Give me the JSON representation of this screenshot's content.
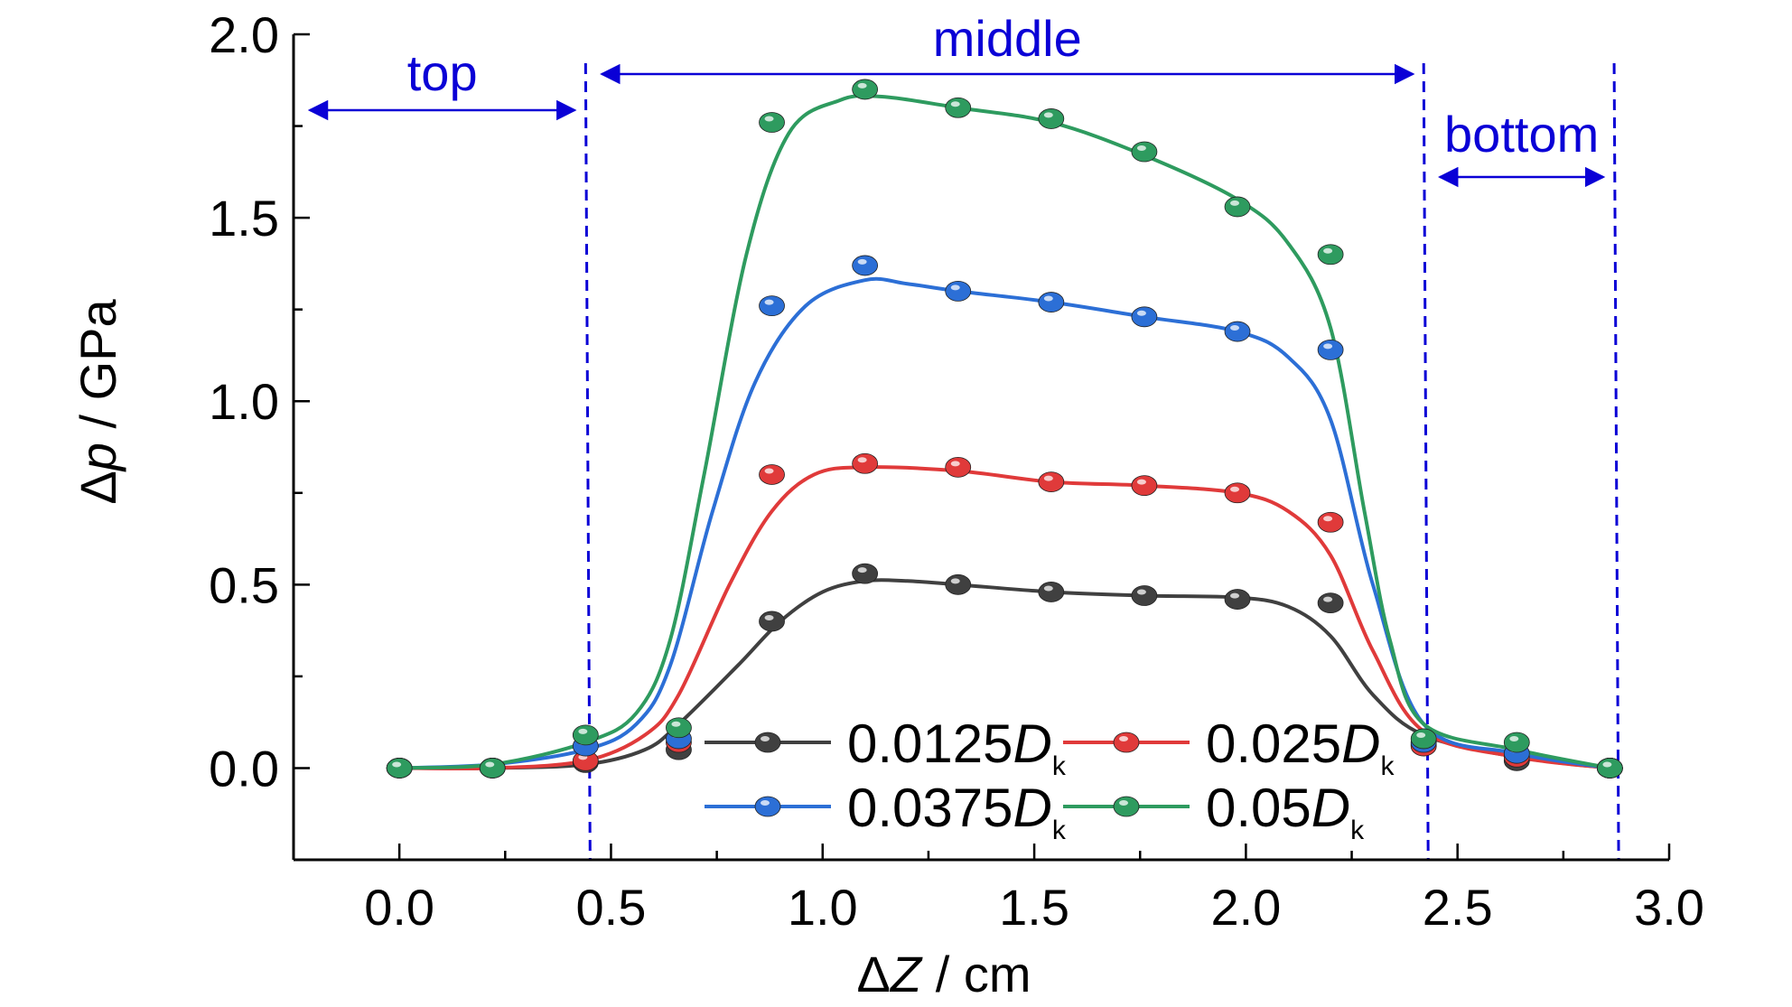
{
  "chart_data": {
    "type": "line",
    "xlabel": {
      "prefix": "Δ",
      "var": "Z",
      "unit": " / cm"
    },
    "ylabel": {
      "prefix": "Δ",
      "var": "p",
      "unit": " / GPa"
    },
    "xlim": [
      -0.25,
      3.0
    ],
    "ylim": [
      -0.25,
      2.0
    ],
    "x_ticks": [
      "0.0",
      "0.5",
      "1.0",
      "1.5",
      "2.0",
      "2.5",
      "3.0"
    ],
    "y_ticks": [
      "0.0",
      "0.5",
      "1.0",
      "1.5",
      "2.0"
    ],
    "x_tick_values": [
      0.0,
      0.5,
      1.0,
      1.5,
      2.0,
      2.5,
      3.0
    ],
    "y_tick_values": [
      0.0,
      0.5,
      1.0,
      1.5,
      2.0
    ],
    "x_minor_step": 0.25,
    "y_minor_step": 0.25,
    "x": [
      0.0,
      0.22,
      0.44,
      0.66,
      0.88,
      1.1,
      1.32,
      1.54,
      1.76,
      1.98,
      2.2,
      2.42,
      2.64,
      2.86
    ],
    "series": [
      {
        "name": "0.0125",
        "subscript_base": "D",
        "subscript": "k",
        "color": "#404040",
        "values": [
          0.0,
          0.0,
          0.015,
          0.05,
          0.4,
          0.53,
          0.5,
          0.48,
          0.47,
          0.46,
          0.45,
          0.065,
          0.02,
          0.0
        ],
        "curve": [
          [
            0.0,
            0.0
          ],
          [
            0.22,
            0.0
          ],
          [
            0.44,
            0.01
          ],
          [
            0.58,
            0.05
          ],
          [
            0.66,
            0.12
          ],
          [
            0.8,
            0.28
          ],
          [
            0.9,
            0.4
          ],
          [
            1.0,
            0.48
          ],
          [
            1.1,
            0.51
          ],
          [
            1.2,
            0.51
          ],
          [
            1.32,
            0.5
          ],
          [
            1.54,
            0.48
          ],
          [
            1.76,
            0.47
          ],
          [
            1.98,
            0.465
          ],
          [
            2.1,
            0.44
          ],
          [
            2.2,
            0.36
          ],
          [
            2.3,
            0.2
          ],
          [
            2.42,
            0.09
          ],
          [
            2.64,
            0.03
          ],
          [
            2.86,
            0.0
          ]
        ]
      },
      {
        "name": "0.025",
        "subscript_base": "D",
        "subscript": "k",
        "color": "#e03a3a",
        "values": [
          0.0,
          0.0,
          0.02,
          0.07,
          0.8,
          0.83,
          0.82,
          0.78,
          0.77,
          0.75,
          0.67,
          0.06,
          0.03,
          0.0
        ],
        "curve": [
          [
            0.0,
            0.0
          ],
          [
            0.22,
            0.0
          ],
          [
            0.44,
            0.02
          ],
          [
            0.58,
            0.09
          ],
          [
            0.66,
            0.2
          ],
          [
            0.78,
            0.5
          ],
          [
            0.88,
            0.7
          ],
          [
            0.98,
            0.8
          ],
          [
            1.1,
            0.82
          ],
          [
            1.32,
            0.81
          ],
          [
            1.54,
            0.78
          ],
          [
            1.76,
            0.77
          ],
          [
            1.98,
            0.75
          ],
          [
            2.1,
            0.7
          ],
          [
            2.2,
            0.58
          ],
          [
            2.3,
            0.32
          ],
          [
            2.42,
            0.1
          ],
          [
            2.64,
            0.03
          ],
          [
            2.86,
            0.0
          ]
        ]
      },
      {
        "name": "0.0375",
        "subscript_base": "D",
        "subscript": "k",
        "color": "#2c6fd6",
        "values": [
          0.0,
          0.0,
          0.06,
          0.08,
          1.26,
          1.37,
          1.3,
          1.27,
          1.23,
          1.19,
          1.14,
          0.07,
          0.04,
          0.0
        ],
        "curve": [
          [
            0.0,
            0.0
          ],
          [
            0.22,
            0.01
          ],
          [
            0.44,
            0.05
          ],
          [
            0.56,
            0.12
          ],
          [
            0.64,
            0.28
          ],
          [
            0.74,
            0.7
          ],
          [
            0.84,
            1.05
          ],
          [
            0.96,
            1.26
          ],
          [
            1.1,
            1.33
          ],
          [
            1.2,
            1.32
          ],
          [
            1.32,
            1.3
          ],
          [
            1.54,
            1.27
          ],
          [
            1.76,
            1.23
          ],
          [
            1.98,
            1.19
          ],
          [
            2.1,
            1.12
          ],
          [
            2.2,
            0.95
          ],
          [
            2.3,
            0.5
          ],
          [
            2.42,
            0.12
          ],
          [
            2.64,
            0.04
          ],
          [
            2.86,
            0.0
          ]
        ]
      },
      {
        "name": "0.05",
        "subscript_base": "D",
        "subscript": "k",
        "color": "#2e9b5f",
        "values": [
          0.0,
          0.0,
          0.09,
          0.11,
          1.76,
          1.85,
          1.8,
          1.77,
          1.68,
          1.53,
          1.4,
          0.08,
          0.07,
          0.0
        ],
        "curve": [
          [
            0.0,
            0.0
          ],
          [
            0.22,
            0.01
          ],
          [
            0.44,
            0.07
          ],
          [
            0.56,
            0.15
          ],
          [
            0.64,
            0.35
          ],
          [
            0.72,
            0.8
          ],
          [
            0.82,
            1.4
          ],
          [
            0.92,
            1.73
          ],
          [
            1.04,
            1.82
          ],
          [
            1.14,
            1.83
          ],
          [
            1.32,
            1.8
          ],
          [
            1.54,
            1.76
          ],
          [
            1.76,
            1.67
          ],
          [
            1.98,
            1.55
          ],
          [
            2.1,
            1.43
          ],
          [
            2.2,
            1.2
          ],
          [
            2.28,
            0.7
          ],
          [
            2.34,
            0.35
          ],
          [
            2.42,
            0.12
          ],
          [
            2.64,
            0.05
          ],
          [
            2.86,
            0.0
          ]
        ]
      }
    ],
    "legend": {
      "placement": "lower-center",
      "columns": 2,
      "order": [
        0,
        1,
        2,
        3
      ]
    },
    "regions": [
      {
        "label": "top",
        "from": -0.25,
        "to": 0.44
      },
      {
        "label": "middle",
        "from": 0.44,
        "to": 2.42
      },
      {
        "label": "bottom",
        "from": 2.42,
        "to": 2.87
      }
    ],
    "divider_lines": [
      0.44,
      2.42,
      2.87
    ],
    "grid": false,
    "annotation_color": "#0a00d6"
  }
}
